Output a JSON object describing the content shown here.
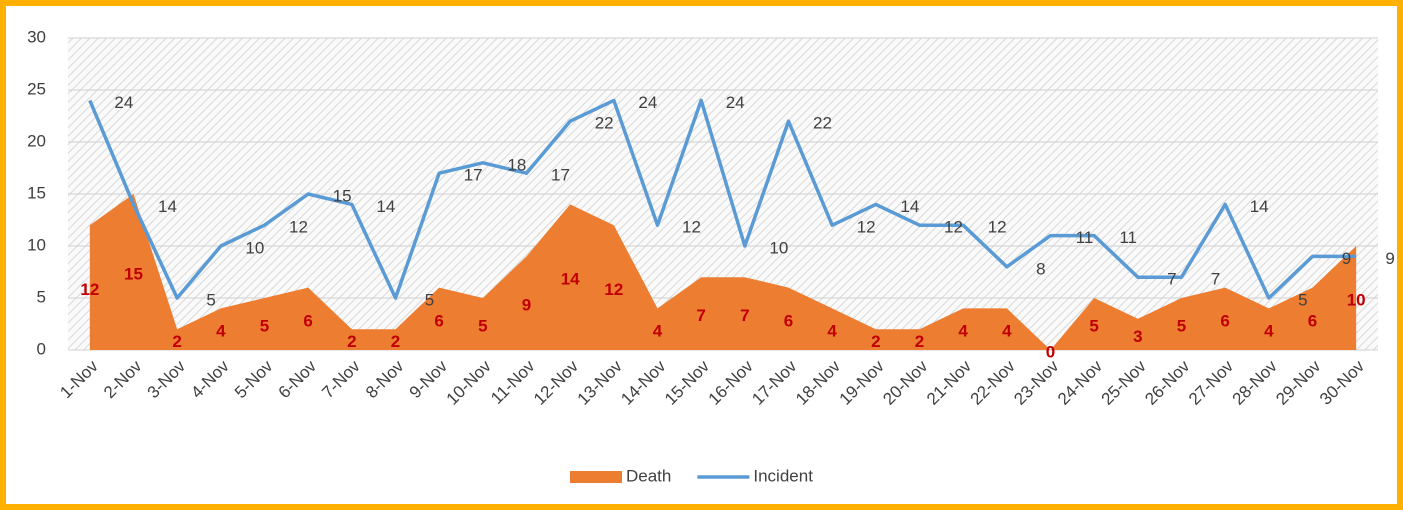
{
  "chart_data": {
    "type": "combo",
    "categories": [
      "1-Nov",
      "2-Nov",
      "3-Nov",
      "4-Nov",
      "5-Nov",
      "6-Nov",
      "7-Nov",
      "8-Nov",
      "9-Nov",
      "10-Nov",
      "11-Nov",
      "12-Nov",
      "13-Nov",
      "14-Nov",
      "15-Nov",
      "16-Nov",
      "17-Nov",
      "18-Nov",
      "19-Nov",
      "20-Nov",
      "21-Nov",
      "22-Nov",
      "23-Nov",
      "24-Nov",
      "25-Nov",
      "26-Nov",
      "27-Nov",
      "28-Nov",
      "29-Nov",
      "30-Nov"
    ],
    "series": [
      {
        "name": "Death",
        "type": "area",
        "color": "#ed7d31",
        "values": [
          12,
          15,
          2,
          4,
          5,
          6,
          2,
          2,
          6,
          5,
          9,
          14,
          12,
          4,
          7,
          7,
          6,
          4,
          2,
          2,
          4,
          4,
          0,
          5,
          3,
          5,
          6,
          4,
          6,
          10
        ]
      },
      {
        "name": "Incident",
        "type": "line",
        "color": "#5b9bd5",
        "values": [
          24,
          14,
          5,
          10,
          12,
          15,
          14,
          5,
          17,
          18,
          17,
          22,
          24,
          12,
          24,
          10,
          22,
          12,
          14,
          12,
          12,
          8,
          11,
          11,
          7,
          7,
          14,
          5,
          9,
          9
        ]
      }
    ],
    "ylim": [
      0,
      30
    ],
    "yticks": [
      0,
      5,
      10,
      15,
      20,
      25,
      30
    ],
    "grid": true,
    "legend": "bottom"
  }
}
